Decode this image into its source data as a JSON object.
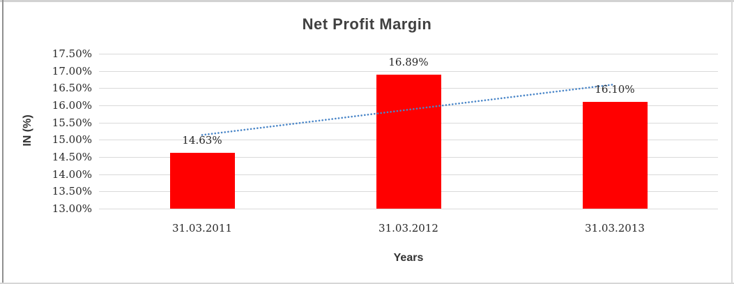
{
  "chart_data": {
    "type": "bar",
    "title": "Net Profit Margin",
    "xlabel": "Years",
    "ylabel": "IN (%)",
    "categories": [
      "31.03.2011",
      "31.03.2012",
      "31.03.2013"
    ],
    "series": [
      {
        "name": "Net Profit Margin",
        "color": "#ff0000",
        "values": [
          14.63,
          16.89,
          16.1
        ]
      }
    ],
    "data_labels": [
      "14.63%",
      "16.89%",
      "16.10%"
    ],
    "y_axis": {
      "min": 13.0,
      "max": 17.5,
      "step": 0.5,
      "tick_labels": [
        "17.50%",
        "17.00%",
        "16.50%",
        "16.00%",
        "15.50%",
        "15.00%",
        "14.50%",
        "14.00%",
        "13.50%",
        "13.00%"
      ]
    },
    "trendline": {
      "type": "linear",
      "style": "dotted",
      "color": "#4a86c8",
      "points": [
        [
          1,
          15.14
        ],
        [
          3,
          16.61
        ]
      ]
    },
    "gridlines": {
      "horizontal": true,
      "color": "#d9d9d9"
    },
    "legend": "none",
    "colors": {
      "bar": "#ff0000",
      "trendline": "#4a86c8",
      "gridline": "#d9d9d9",
      "title_text": "#404040",
      "tick_text": "#262626"
    }
  }
}
